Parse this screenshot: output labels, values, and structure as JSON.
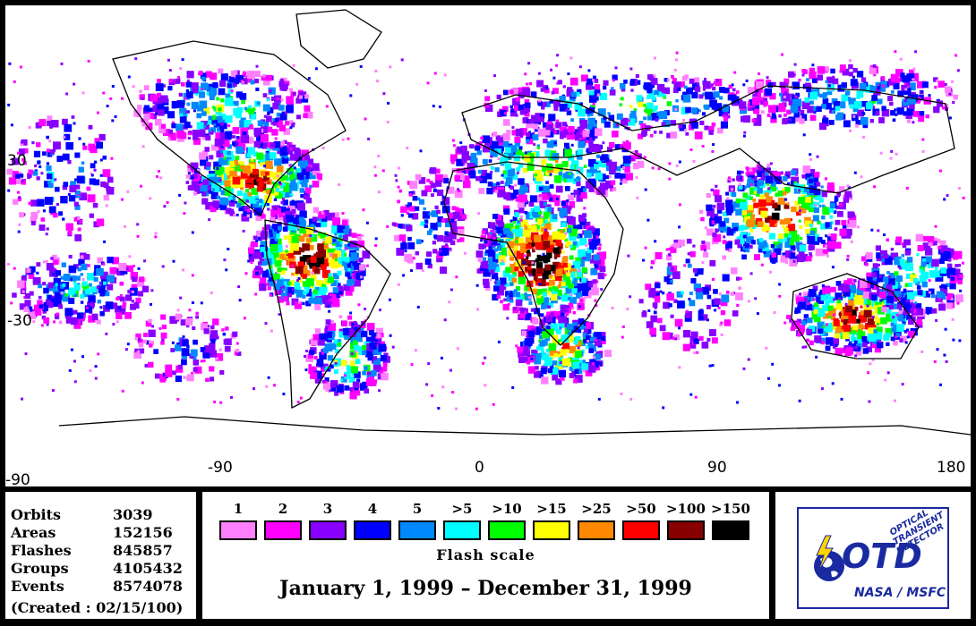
{
  "map": {
    "x_tick_labels": [
      "-90",
      "0",
      "90",
      "180"
    ],
    "y_tick_labels": [
      "30",
      "-30",
      "-90"
    ],
    "colors": {
      "land_outline": "#000000",
      "background": "#ffffff"
    }
  },
  "stats": {
    "rows": [
      {
        "name": "Orbits",
        "value": "3039"
      },
      {
        "name": "Areas",
        "value": "152156"
      },
      {
        "name": "Flashes",
        "value": "845857"
      },
      {
        "name": "Groups",
        "value": "4105432"
      },
      {
        "name": "Events",
        "value": "8574078"
      }
    ],
    "created": "(Created : 02/15/100)"
  },
  "flash_scale": {
    "title": "Flash scale",
    "items": [
      {
        "label": "1",
        "color": "#ff80ff"
      },
      {
        "label": "2",
        "color": "#ff00ff"
      },
      {
        "label": "3",
        "color": "#8800ff"
      },
      {
        "label": "4",
        "color": "#0000ff"
      },
      {
        "label": "5",
        "color": "#0088ff"
      },
      {
        "label": ">5",
        "color": "#00ffff"
      },
      {
        "label": ">10",
        "color": "#00ff00"
      },
      {
        "label": ">15",
        "color": "#ffff00"
      },
      {
        "label": ">25",
        "color": "#ff8800"
      },
      {
        "label": ">50",
        "color": "#ff0000"
      },
      {
        "label": ">100",
        "color": "#880000"
      },
      {
        "label": ">150",
        "color": "#000000"
      }
    ]
  },
  "date_range": "January 1, 1999 – December 31, 1999",
  "logo": {
    "line1": "OPTICAL",
    "line2": "TRANSIENT",
    "line3": "DETECTOR",
    "initials": "OTD",
    "org": "NASA / MSFC",
    "colors": {
      "blue": "#1a2aa0",
      "yellow": "#ffd400"
    }
  }
}
